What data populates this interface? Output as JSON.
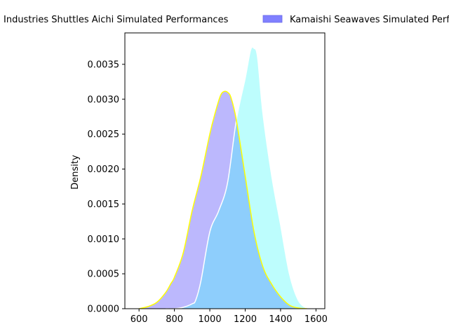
{
  "chart_data": {
    "type": "area",
    "chart_subtype": "kde-density",
    "title": "",
    "xlabel": "",
    "ylabel": "Density",
    "xlim": [
      520,
      1650
    ],
    "ylim": [
      0,
      0.00395
    ],
    "x_ticks": [
      600,
      800,
      1000,
      1200,
      1400,
      1600
    ],
    "y_ticks": [
      0.0,
      0.0005,
      0.001,
      0.0015,
      0.002,
      0.0025,
      0.003,
      0.0035
    ],
    "y_tick_labels": [
      "0.0000",
      "0.0005",
      "0.0010",
      "0.0015",
      "0.0020",
      "0.0025",
      "0.0030",
      "0.0035"
    ],
    "grid": false,
    "legend_position": "top, outside plot",
    "series": [
      {
        "name": "Industries Shuttles Aichi Simulated Performances",
        "fill_color": "#bcb8fd",
        "edge_color": "#ffff00",
        "x": [
          600,
          650,
          700,
          750,
          780,
          800,
          850,
          900,
          950,
          1000,
          1030,
          1060,
          1080,
          1100,
          1120,
          1150,
          1200,
          1250,
          1300,
          1350,
          1400,
          1450,
          1500,
          1550
        ],
        "y": [
          0.0,
          3e-05,
          9e-05,
          0.00023,
          0.00036,
          0.00045,
          0.0008,
          0.0014,
          0.0019,
          0.0025,
          0.0028,
          0.00305,
          0.00311,
          0.0031,
          0.00302,
          0.0027,
          0.0019,
          0.0011,
          0.0006,
          0.00035,
          0.00017,
          5e-05,
          1e-05,
          0.0
        ]
      },
      {
        "name": "Kamaishi Seawaves Simulated Performances",
        "fill_color": "#bdfdfd",
        "edge_color": "#ffffff",
        "x": [
          750,
          800,
          850,
          900,
          920,
          950,
          1000,
          1050,
          1100,
          1150,
          1200,
          1230,
          1250,
          1270,
          1300,
          1350,
          1400,
          1450,
          1500,
          1550
        ],
        "y": [
          0.0,
          0.0,
          2e-05,
          7e-05,
          0.00012,
          0.0004,
          0.0011,
          0.0014,
          0.0018,
          0.0027,
          0.0033,
          0.0037,
          0.00373,
          0.0036,
          0.0028,
          0.0019,
          0.0012,
          0.0005,
          0.00012,
          0.0
        ]
      }
    ],
    "overlap_color": "#8ecefc",
    "legend_entries": [
      {
        "label": "Industries Shuttles Aichi Simulated Performances",
        "color": "#bcb8fd"
      },
      {
        "label": "Kamaishi Seawaves Simulated Performances",
        "color": "#8080ff"
      }
    ]
  }
}
